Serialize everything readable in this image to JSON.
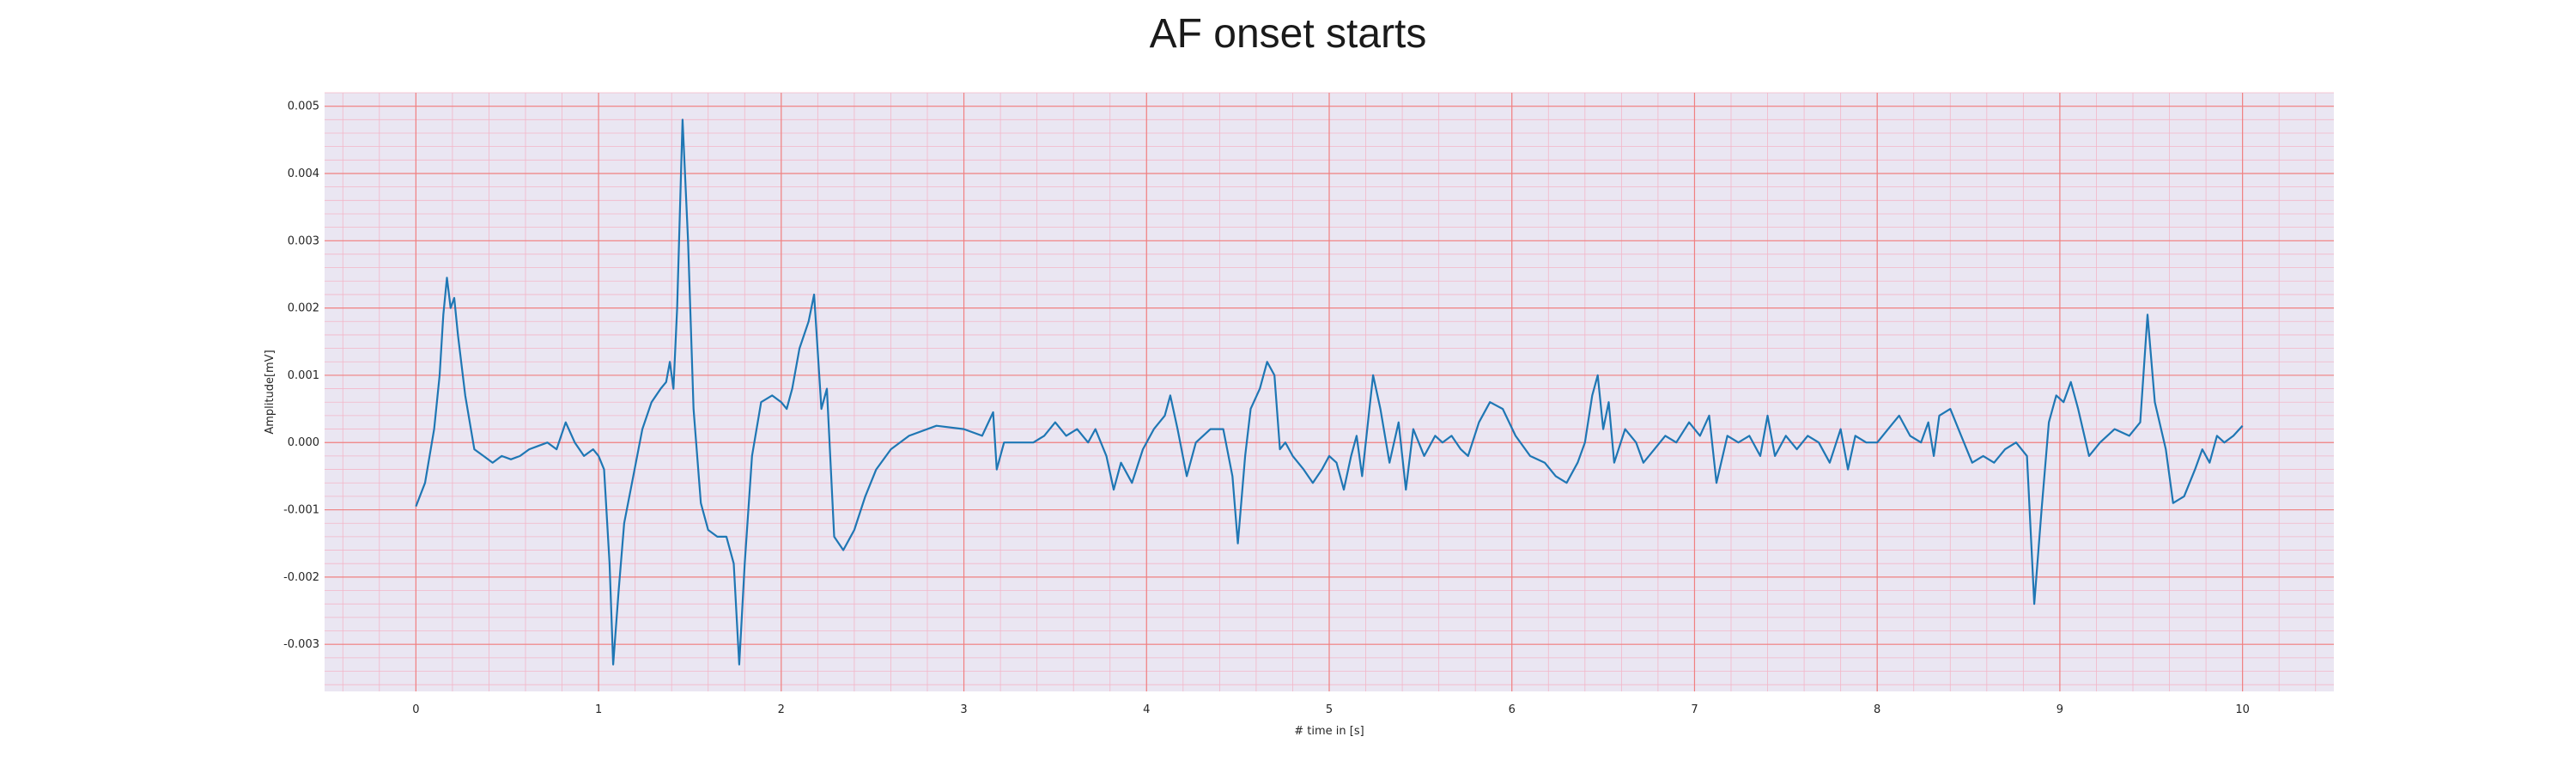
{
  "chart_data": {
    "type": "line",
    "title": "AF onset starts",
    "xlabel": "# time in [s]",
    "ylabel": "Amplitude[mV]",
    "xlim": [
      -0.5,
      10.5
    ],
    "ylim": [
      -0.0037,
      0.0052
    ],
    "x_ticks": [
      0,
      1,
      2,
      3,
      4,
      5,
      6,
      7,
      8,
      9,
      10
    ],
    "x_tick_labels": [
      "0",
      "1",
      "2",
      "3",
      "4",
      "5",
      "6",
      "7",
      "8",
      "9",
      "10"
    ],
    "y_ticks": [
      -0.003,
      -0.002,
      -0.001,
      0.0,
      0.001,
      0.002,
      0.003,
      0.004,
      0.005
    ],
    "y_tick_labels": [
      "-0.003",
      "-0.002",
      "-0.001",
      "0.000",
      "0.001",
      "0.002",
      "0.003",
      "0.004",
      "0.005"
    ],
    "grid": true,
    "colors": {
      "background": "#eae6f2",
      "major_grid": "#f08080",
      "minor_grid": "#f3b6c8",
      "line": "#1f77b4"
    },
    "series": [
      {
        "values": [
          [
            0.0,
            -0.00095
          ],
          [
            0.05,
            -0.0006
          ],
          [
            0.1,
            0.0002
          ],
          [
            0.13,
            0.001
          ],
          [
            0.15,
            0.0019
          ],
          [
            0.17,
            0.00245
          ],
          [
            0.19,
            0.002
          ],
          [
            0.21,
            0.00215
          ],
          [
            0.23,
            0.0016
          ],
          [
            0.27,
            0.0007
          ],
          [
            0.32,
            -0.0001
          ],
          [
            0.37,
            -0.0002
          ],
          [
            0.42,
            -0.0003
          ],
          [
            0.47,
            -0.0002
          ],
          [
            0.52,
            -0.00025
          ],
          [
            0.57,
            -0.0002
          ],
          [
            0.62,
            -0.0001
          ],
          [
            0.67,
            -5e-05
          ],
          [
            0.72,
            0.0
          ],
          [
            0.77,
            -0.0001
          ],
          [
            0.82,
            0.0003
          ],
          [
            0.87,
            0.0
          ],
          [
            0.92,
            -0.0002
          ],
          [
            0.97,
            -0.0001
          ],
          [
            1.0,
            -0.0002
          ],
          [
            1.03,
            -0.0004
          ],
          [
            1.06,
            -0.0018
          ],
          [
            1.08,
            -0.0033
          ],
          [
            1.11,
            -0.0022
          ],
          [
            1.14,
            -0.0012
          ],
          [
            1.19,
            -0.0005
          ],
          [
            1.24,
            0.0002
          ],
          [
            1.29,
            0.0006
          ],
          [
            1.34,
            0.0008
          ],
          [
            1.37,
            0.0009
          ],
          [
            1.39,
            0.0012
          ],
          [
            1.41,
            0.0008
          ],
          [
            1.43,
            0.002
          ],
          [
            1.46,
            0.0048
          ],
          [
            1.49,
            0.003
          ],
          [
            1.52,
            0.0005
          ],
          [
            1.56,
            -0.0009
          ],
          [
            1.6,
            -0.0013
          ],
          [
            1.65,
            -0.0014
          ],
          [
            1.7,
            -0.0014
          ],
          [
            1.74,
            -0.0018
          ],
          [
            1.77,
            -0.0033
          ],
          [
            1.8,
            -0.0018
          ],
          [
            1.84,
            -0.0002
          ],
          [
            1.89,
            0.0006
          ],
          [
            1.95,
            0.0007
          ],
          [
            2.0,
            0.0006
          ],
          [
            2.03,
            0.0005
          ],
          [
            2.06,
            0.0008
          ],
          [
            2.1,
            0.0014
          ],
          [
            2.15,
            0.0018
          ],
          [
            2.18,
            0.0022
          ],
          [
            2.22,
            0.0005
          ],
          [
            2.25,
            0.0008
          ],
          [
            2.29,
            -0.0014
          ],
          [
            2.34,
            -0.0016
          ],
          [
            2.4,
            -0.0013
          ],
          [
            2.46,
            -0.0008
          ],
          [
            2.52,
            -0.0004
          ],
          [
            2.6,
            -0.0001
          ],
          [
            2.7,
            0.0001
          ],
          [
            2.85,
            0.00025
          ],
          [
            3.0,
            0.0002
          ],
          [
            3.1,
            0.0001
          ],
          [
            3.16,
            0.00045
          ],
          [
            3.18,
            -0.0004
          ],
          [
            3.22,
            0.0
          ],
          [
            3.3,
            0.0
          ],
          [
            3.38,
            0.0
          ],
          [
            3.44,
            0.0001
          ],
          [
            3.5,
            0.0003
          ],
          [
            3.56,
            0.0001
          ],
          [
            3.62,
            0.0002
          ],
          [
            3.68,
            0.0
          ],
          [
            3.72,
            0.0002
          ],
          [
            3.78,
            -0.0002
          ],
          [
            3.82,
            -0.0007
          ],
          [
            3.86,
            -0.0003
          ],
          [
            3.92,
            -0.0006
          ],
          [
            3.98,
            -0.0001
          ],
          [
            4.04,
            0.0002
          ],
          [
            4.1,
            0.0004
          ],
          [
            4.13,
            0.0007
          ],
          [
            4.17,
            0.0002
          ],
          [
            4.22,
            -0.0005
          ],
          [
            4.27,
            0.0
          ],
          [
            4.35,
            0.0002
          ],
          [
            4.42,
            0.0002
          ],
          [
            4.47,
            -0.0005
          ],
          [
            4.5,
            -0.0015
          ],
          [
            4.54,
            -0.0002
          ],
          [
            4.57,
            0.0005
          ],
          [
            4.62,
            0.0008
          ],
          [
            4.66,
            0.0012
          ],
          [
            4.7,
            0.001
          ],
          [
            4.73,
            -0.0001
          ],
          [
            4.76,
            0.0
          ],
          [
            4.8,
            -0.0002
          ],
          [
            4.86,
            -0.0004
          ],
          [
            4.91,
            -0.0006
          ],
          [
            4.96,
            -0.0004
          ],
          [
            5.0,
            -0.0002
          ],
          [
            5.04,
            -0.0003
          ],
          [
            5.08,
            -0.0007
          ],
          [
            5.12,
            -0.0002
          ],
          [
            5.15,
            0.0001
          ],
          [
            5.18,
            -0.0005
          ],
          [
            5.24,
            0.001
          ],
          [
            5.28,
            0.0005
          ],
          [
            5.33,
            -0.0003
          ],
          [
            5.38,
            0.0003
          ],
          [
            5.42,
            -0.0007
          ],
          [
            5.46,
            0.0002
          ],
          [
            5.52,
            -0.0002
          ],
          [
            5.58,
            0.0001
          ],
          [
            5.62,
            0.0
          ],
          [
            5.67,
            0.0001
          ],
          [
            5.72,
            -0.0001
          ],
          [
            5.76,
            -0.0002
          ],
          [
            5.82,
            0.0003
          ],
          [
            5.88,
            0.0006
          ],
          [
            5.95,
            0.0005
          ],
          [
            6.02,
            0.0001
          ],
          [
            6.1,
            -0.0002
          ],
          [
            6.18,
            -0.0003
          ],
          [
            6.24,
            -0.0005
          ],
          [
            6.3,
            -0.0006
          ],
          [
            6.36,
            -0.0003
          ],
          [
            6.4,
            0.0
          ],
          [
            6.44,
            0.0007
          ],
          [
            6.47,
            0.001
          ],
          [
            6.5,
            0.0002
          ],
          [
            6.53,
            0.0006
          ],
          [
            6.56,
            -0.0003
          ],
          [
            6.62,
            0.0002
          ],
          [
            6.68,
            0.0
          ],
          [
            6.72,
            -0.0003
          ],
          [
            6.78,
            -0.0001
          ],
          [
            6.84,
            0.0001
          ],
          [
            6.9,
            0.0
          ],
          [
            6.97,
            0.0003
          ],
          [
            7.03,
            0.0001
          ],
          [
            7.08,
            0.0004
          ],
          [
            7.12,
            -0.0006
          ],
          [
            7.18,
            0.0001
          ],
          [
            7.24,
            0.0
          ],
          [
            7.3,
            0.0001
          ],
          [
            7.36,
            -0.0002
          ],
          [
            7.4,
            0.0004
          ],
          [
            7.44,
            -0.0002
          ],
          [
            7.5,
            0.0001
          ],
          [
            7.56,
            -0.0001
          ],
          [
            7.62,
            0.0001
          ],
          [
            7.68,
            0.0
          ],
          [
            7.74,
            -0.0003
          ],
          [
            7.8,
            0.0002
          ],
          [
            7.84,
            -0.0004
          ],
          [
            7.88,
            0.0001
          ],
          [
            7.94,
            0.0
          ],
          [
            8.0,
            0.0
          ],
          [
            8.06,
            0.0002
          ],
          [
            8.12,
            0.0004
          ],
          [
            8.18,
            0.0001
          ],
          [
            8.24,
            0.0
          ],
          [
            8.28,
            0.0003
          ],
          [
            8.31,
            -0.0002
          ],
          [
            8.34,
            0.0004
          ],
          [
            8.4,
            0.0005
          ],
          [
            8.46,
            0.0001
          ],
          [
            8.52,
            -0.0003
          ],
          [
            8.58,
            -0.0002
          ],
          [
            8.64,
            -0.0003
          ],
          [
            8.7,
            -0.0001
          ],
          [
            8.76,
            0.0
          ],
          [
            8.82,
            -0.0002
          ],
          [
            8.86,
            -0.0024
          ],
          [
            8.9,
            -0.001
          ],
          [
            8.94,
            0.0003
          ],
          [
            8.98,
            0.0007
          ],
          [
            9.02,
            0.0006
          ],
          [
            9.06,
            0.0009
          ],
          [
            9.1,
            0.0005
          ],
          [
            9.16,
            -0.0002
          ],
          [
            9.22,
            0.0
          ],
          [
            9.3,
            0.0002
          ],
          [
            9.38,
            0.0001
          ],
          [
            9.44,
            0.0003
          ],
          [
            9.48,
            0.0019
          ],
          [
            9.52,
            0.0006
          ],
          [
            9.58,
            -0.0001
          ],
          [
            9.62,
            -0.0009
          ],
          [
            9.68,
            -0.0008
          ],
          [
            9.74,
            -0.0004
          ],
          [
            9.78,
            -0.0001
          ],
          [
            9.82,
            -0.0003
          ],
          [
            9.86,
            0.0001
          ],
          [
            9.9,
            0.0
          ],
          [
            9.95,
            0.0001
          ],
          [
            10.0,
            0.00025
          ]
        ]
      }
    ]
  }
}
